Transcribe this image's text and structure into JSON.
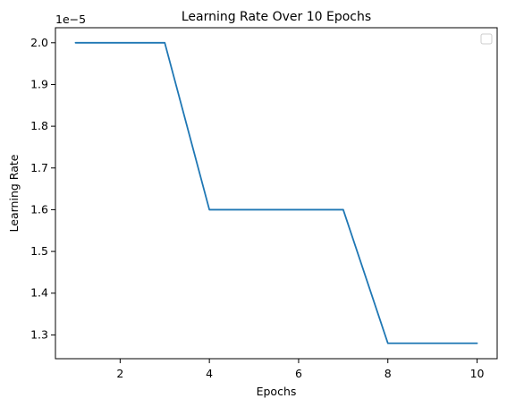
{
  "chart_data": {
    "type": "line",
    "title": "Learning Rate Over 10 Epochs",
    "xlabel": "Epochs",
    "ylabel": "Learning Rate",
    "y_offset_label": "1e−5",
    "xlim": [
      0.55,
      10.45
    ],
    "ylim": [
      1.243,
      2.036
    ],
    "y_scale_factor": 1e-05,
    "x_ticks": [
      2,
      4,
      6,
      8,
      10
    ],
    "y_ticks": [
      1.3,
      1.4,
      1.5,
      1.6,
      1.7,
      1.8,
      1.9,
      2.0
    ],
    "x_tick_labels": [
      "2",
      "4",
      "6",
      "8",
      "10"
    ],
    "y_tick_labels": [
      "1.3",
      "1.4",
      "1.5",
      "1.6",
      "1.7",
      "1.8",
      "1.9",
      "2.0"
    ],
    "grid": false,
    "legend": "top-right",
    "series": [
      {
        "color": "#1f77b4",
        "x": [
          1,
          2,
          3,
          4,
          5,
          6,
          7,
          8,
          9,
          10
        ],
        "y": [
          2e-05,
          2e-05,
          2e-05,
          1.6e-05,
          1.6e-05,
          1.6e-05,
          1.6e-05,
          1.28e-05,
          1.28e-05,
          1.28e-05
        ]
      }
    ]
  }
}
